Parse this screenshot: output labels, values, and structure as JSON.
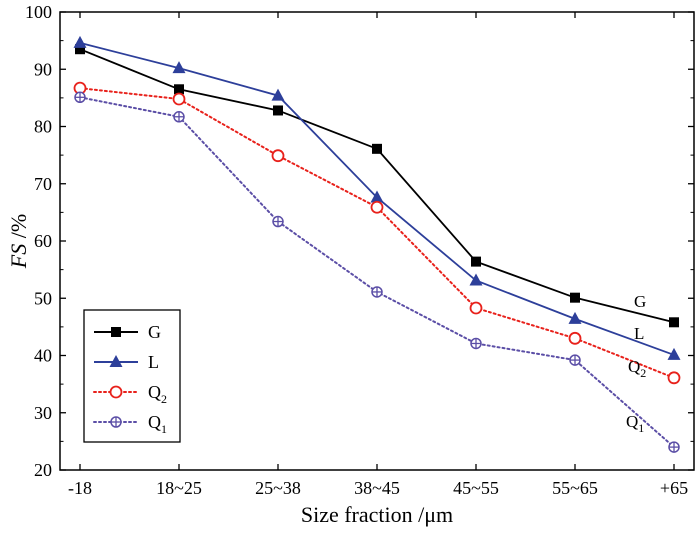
{
  "chart_data": {
    "type": "line",
    "xlabel": "Size fraction /μm",
    "ylabel_italic": "FS",
    "ylabel_unit": " /%",
    "categories": [
      "-18",
      "18~25",
      "25~38",
      "38~45",
      "45~55",
      "55~65",
      "+65"
    ],
    "ylim": [
      20,
      100
    ],
    "yticks": [
      20,
      30,
      40,
      50,
      60,
      70,
      80,
      90,
      100
    ],
    "grid": false,
    "legend_position": "bottom-left",
    "series": [
      {
        "name": "G",
        "sub": "",
        "values": [
          93.5,
          86.5,
          82.8,
          76.1,
          56.4,
          50.1,
          45.8
        ],
        "color": "#000000",
        "marker": "square",
        "dash": "solid"
      },
      {
        "name": "L",
        "sub": "",
        "values": [
          94.6,
          90.2,
          85.4,
          67.6,
          53.1,
          46.4,
          40.1
        ],
        "color": "#2d3f9a",
        "marker": "triangle",
        "dash": "solid"
      },
      {
        "name": "Q",
        "sub": "2",
        "values": [
          86.7,
          84.8,
          74.9,
          65.9,
          48.3,
          43.0,
          36.1
        ],
        "color": "#e8211b",
        "marker": "circle",
        "dash": "dotted"
      },
      {
        "name": "Q",
        "sub": "1",
        "values": [
          85.1,
          81.7,
          63.4,
          51.1,
          42.1,
          39.2,
          24.0
        ],
        "color": "#5b4ea6",
        "marker": "crosshair",
        "dash": "dotted"
      }
    ],
    "end_labels": [
      {
        "name": "G",
        "sub": ""
      },
      {
        "name": "L",
        "sub": ""
      },
      {
        "name": "Q",
        "sub": "2"
      },
      {
        "name": "Q",
        "sub": "1"
      }
    ]
  }
}
